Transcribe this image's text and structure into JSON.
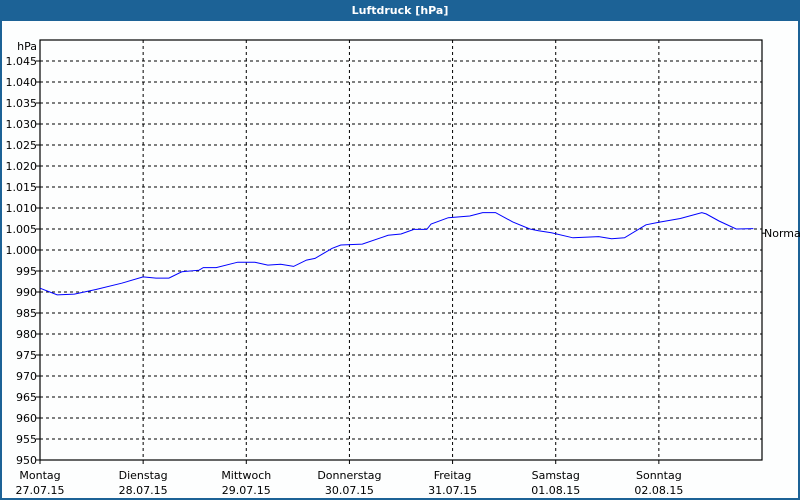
{
  "window": {
    "title": "Luftdruck [hPa]"
  },
  "chart_data": {
    "type": "line",
    "title": "Luftdruck [hPa]",
    "ylabel": "hPa",
    "ylim": [
      950,
      1050
    ],
    "yticks": [
      950,
      955,
      960,
      965,
      970,
      975,
      980,
      985,
      990,
      995,
      1000,
      1005,
      1010,
      1015,
      1020,
      1025,
      1030,
      1035,
      1040,
      1045
    ],
    "ytick_labels": [
      "950",
      "955",
      "960",
      "965",
      "970",
      "975",
      "980",
      "985",
      "990",
      "995",
      "1.000",
      "1.005",
      "1.010",
      "1.015",
      "1.020",
      "1.025",
      "1.030",
      "1.035",
      "1.040",
      "1.045"
    ],
    "xlim": [
      "27.07.15 00:00",
      "03.08.15 00:00"
    ],
    "xticks": [
      {
        "day": "Montag",
        "date": "27.07.15"
      },
      {
        "day": "Dienstag",
        "date": "28.07.15"
      },
      {
        "day": "Mittwoch",
        "date": "29.07.15"
      },
      {
        "day": "Donnerstag",
        "date": "30.07.15"
      },
      {
        "day": "Freitag",
        "date": "31.07.15"
      },
      {
        "day": "Samstag",
        "date": "01.08.15"
      },
      {
        "day": "Sonntag",
        "date": "02.08.15"
      }
    ],
    "grid": true,
    "line_color": "#0000ff",
    "reference": {
      "label": "Normal",
      "value": 1004
    },
    "series": [
      {
        "points": [
          [
            "27.07.15 00:00",
            990.9
          ],
          [
            "27.07.15 04:00",
            989.3
          ],
          [
            "27.07.15 08:00",
            989.5
          ],
          [
            "27.07.15 13:00",
            990.6
          ],
          [
            "27.07.15 19:00",
            992.1
          ],
          [
            "28.07.15 00:00",
            993.6
          ],
          [
            "28.07.15 03:00",
            993.3
          ],
          [
            "28.07.15 06:00",
            993.3
          ],
          [
            "28.07.15 09:00",
            994.8
          ],
          [
            "28.07.15 13:00",
            995.2
          ],
          [
            "28.07.15 14:00",
            995.8
          ],
          [
            "28.07.15 17:00",
            995.8
          ],
          [
            "28.07.15 22:00",
            997.1
          ],
          [
            "29.07.15 02:00",
            997.1
          ],
          [
            "29.07.15 05:00",
            996.4
          ],
          [
            "29.07.15 08:00",
            996.6
          ],
          [
            "29.07.15 11:00",
            996.1
          ],
          [
            "29.07.15 14:00",
            997.6
          ],
          [
            "29.07.15 16:00",
            998.0
          ],
          [
            "29.07.15 20:00",
            1000.4
          ],
          [
            "29.07.15 22:00",
            1001.2
          ],
          [
            "30.07.15 03:00",
            1001.4
          ],
          [
            "30.07.15 09:00",
            1003.5
          ],
          [
            "30.07.15 12:00",
            1003.8
          ],
          [
            "30.07.15 15:00",
            1004.9
          ],
          [
            "30.07.15 18:00",
            1004.9
          ],
          [
            "30.07.15 19:00",
            1006.2
          ],
          [
            "30.07.15 23:00",
            1007.7
          ],
          [
            "31.07.15 04:00",
            1008.1
          ],
          [
            "31.07.15 07:00",
            1008.9
          ],
          [
            "31.07.15 10:00",
            1008.9
          ],
          [
            "31.07.15 14:00",
            1006.7
          ],
          [
            "31.07.15 18:00",
            1005.0
          ],
          [
            "31.07.15 20:00",
            1004.6
          ],
          [
            "31.07.15 23:00",
            1004.1
          ],
          [
            "01.08.15 04:00",
            1002.9
          ],
          [
            "01.08.15 10:00",
            1003.2
          ],
          [
            "01.08.15 13:00",
            1002.7
          ],
          [
            "01.08.15 16:00",
            1002.9
          ],
          [
            "01.08.15 21:00",
            1006.0
          ],
          [
            "02.08.15 00:00",
            1006.6
          ],
          [
            "02.08.15 05:00",
            1007.5
          ],
          [
            "02.08.15 10:00",
            1008.9
          ],
          [
            "02.08.15 11:00",
            1008.6
          ],
          [
            "02.08.15 14:00",
            1006.9
          ],
          [
            "02.08.15 18:00",
            1005.0
          ],
          [
            "02.08.15 22:00",
            1005.1
          ]
        ]
      }
    ]
  }
}
